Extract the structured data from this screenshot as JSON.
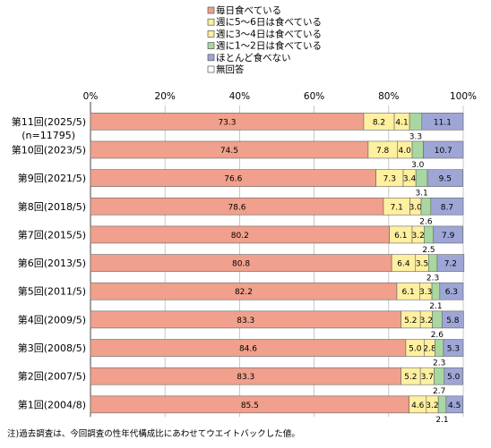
{
  "chart_data": {
    "type": "bar",
    "stacked": true,
    "orientation": "horizontal",
    "xlim": [
      0,
      100
    ],
    "x_ticks": [
      "0%",
      "20%",
      "40%",
      "60%",
      "80%",
      "100%"
    ],
    "grid": true,
    "legend_position": "top",
    "categories": [
      [
        "第11回(2025/5)",
        "(n=11795)"
      ],
      [
        "第10回(2023/5)"
      ],
      [
        "第9回(2021/5)"
      ],
      [
        "第8回(2018/5)"
      ],
      [
        "第7回(2015/5)"
      ],
      [
        "第6回(2013/5)"
      ],
      [
        "第5回(2011/5)"
      ],
      [
        "第4回(2009/5)"
      ],
      [
        "第3回(2008/5)"
      ],
      [
        "第2回(2007/5)"
      ],
      [
        "第1回(2004/8)"
      ]
    ],
    "series": [
      {
        "name": "毎日食べている",
        "color": "#f0a08c",
        "values": [
          73.3,
          74.5,
          76.6,
          78.6,
          80.2,
          80.8,
          82.2,
          83.3,
          84.6,
          83.3,
          85.5
        ],
        "labels": [
          "73.3",
          "74.5",
          "76.6",
          "78.6",
          "80.2",
          "80.8",
          "82.2",
          "83.3",
          "84.6",
          "83.3",
          "85.5"
        ]
      },
      {
        "name": "週に5～6日は食べている",
        "color": "#fff0a0",
        "values": [
          8.2,
          7.8,
          7.3,
          7.1,
          6.1,
          6.4,
          6.1,
          5.2,
          5.0,
          5.2,
          4.6
        ],
        "labels": [
          "8.2",
          "7.8",
          "7.3",
          "7.1",
          "6.1",
          "6.4",
          "6.1",
          "5.2",
          "5.0",
          "5.2",
          "4.6"
        ]
      },
      {
        "name": "週に3～4日は食べている",
        "color": "#fff0a0",
        "values": [
          4.1,
          4.0,
          3.4,
          3.0,
          3.2,
          3.5,
          3.3,
          3.2,
          2.8,
          3.7,
          3.2
        ],
        "labels": [
          "4.1",
          "4.0",
          "3.4",
          "3.0",
          "3.2",
          "3.5",
          "3.3",
          "3.2",
          "2.8",
          "3.7",
          "3.2"
        ]
      },
      {
        "name": "週に1～2日は食べている",
        "color": "#a8d8a0",
        "values": [
          3.3,
          3.0,
          3.1,
          2.6,
          2.5,
          2.3,
          2.1,
          2.6,
          2.3,
          2.7,
          2.1
        ],
        "labels": [
          "3.3",
          "3.0",
          "3.1",
          "2.6",
          "2.5",
          "2.3",
          "2.1",
          "2.6",
          "2.3",
          "2.7",
          "2.1"
        ]
      },
      {
        "name": "ほとんど食べない",
        "color": "#9ea6d6",
        "values": [
          11.1,
          10.7,
          9.5,
          8.7,
          7.9,
          7.2,
          6.3,
          5.8,
          5.3,
          5.0,
          4.5
        ],
        "labels": [
          "11.1",
          "10.7",
          "9.5",
          "8.7",
          "7.9",
          "7.2",
          "6.3",
          "5.8",
          "5.3",
          "5.0",
          "4.5"
        ]
      },
      {
        "name": "無回答",
        "color": "#ffffff",
        "values": [
          0,
          0,
          0,
          0,
          0,
          0,
          0,
          0,
          0,
          0,
          0
        ],
        "labels": [
          "",
          "",
          "",
          "",
          "",
          "",
          "",
          "",
          "",
          "",
          ""
        ]
      }
    ],
    "footnote": "注)過去調査は、今回調査の性年代構成比にあわせてウエイトバックした値。"
  }
}
